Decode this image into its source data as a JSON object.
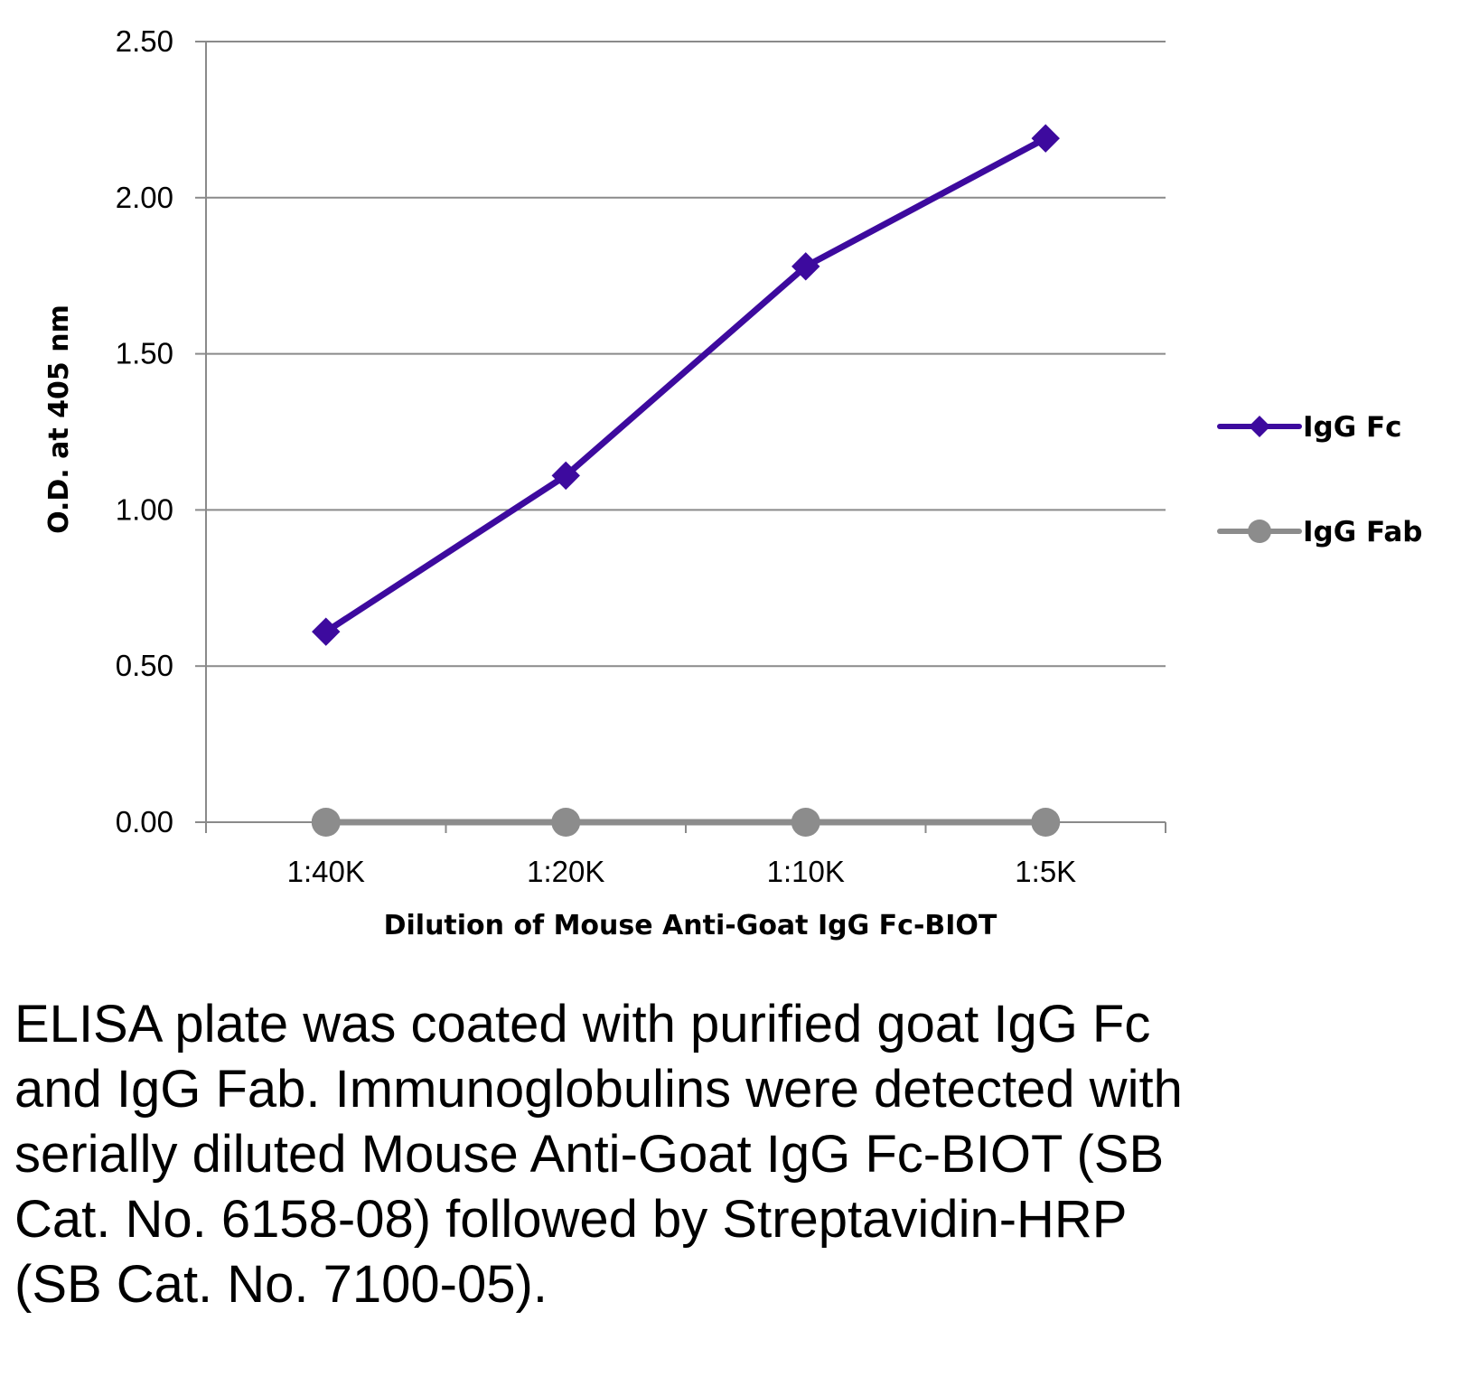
{
  "chart_data": {
    "type": "line",
    "title": "",
    "xlabel": "Dilution of Mouse Anti-Goat IgG Fc-BIOT",
    "ylabel": "O.D. at 405 nm",
    "categories": [
      "1:40K",
      "1:20K",
      "1:10K",
      "1:5K"
    ],
    "ylim": [
      0,
      2.5
    ],
    "yticks": [
      "0.00",
      "0.50",
      "1.00",
      "1.50",
      "2.00",
      "2.50"
    ],
    "grid": true,
    "legend_position": "right",
    "series": [
      {
        "name": "IgG Fc",
        "values": [
          0.61,
          1.11,
          1.78,
          2.19
        ],
        "color": "#3d0a9e",
        "marker": "diamond"
      },
      {
        "name": "IgG Fab",
        "values": [
          0.0,
          0.0,
          0.0,
          0.0
        ],
        "color": "#8c8c8c",
        "marker": "circle"
      }
    ]
  },
  "caption": "ELISA plate was coated with purified goat IgG Fc and IgG Fab.  Immunoglobulins were detected with serially diluted Mouse Anti-Goat IgG Fc-BIOT (SB Cat. No. 6158-08) followed by Streptavidin-HRP (SB Cat. No. 7100-05)."
}
